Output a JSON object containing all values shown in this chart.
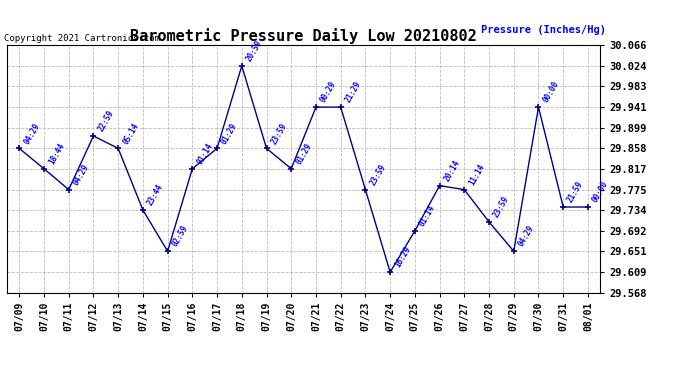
{
  "title": "Barometric Pressure Daily Low 20210802",
  "ylabel": "Pressure (Inches/Hg)",
  "copyright": "Copyright 2021 Cartronics.com",
  "x_labels": [
    "07/09",
    "07/10",
    "07/11",
    "07/12",
    "07/13",
    "07/14",
    "07/15",
    "07/16",
    "07/17",
    "07/18",
    "07/19",
    "07/20",
    "07/21",
    "07/22",
    "07/23",
    "07/24",
    "07/25",
    "07/26",
    "07/27",
    "07/28",
    "07/29",
    "07/30",
    "07/31",
    "08/01"
  ],
  "y_values": [
    29.858,
    29.817,
    29.775,
    29.883,
    29.858,
    29.734,
    29.651,
    29.817,
    29.858,
    30.024,
    29.858,
    29.817,
    29.941,
    29.941,
    29.775,
    29.609,
    29.692,
    29.783,
    29.775,
    29.71,
    29.651,
    29.941,
    29.74,
    29.74
  ],
  "point_labels": [
    "04:29",
    "18:44",
    "04:29",
    "22:59",
    "05:14",
    "23:44",
    "02:59",
    "01:14",
    "01:29",
    "20:59",
    "23:59",
    "01:29",
    "00:29",
    "21:29",
    "23:59",
    "16:29",
    "01:14",
    "20:14",
    "11:14",
    "23:59",
    "04:29",
    "00:00",
    "21:59",
    "00:00"
  ],
  "ylim_min": 29.568,
  "ylim_max": 30.066,
  "yticks": [
    29.568,
    29.609,
    29.651,
    29.692,
    29.734,
    29.775,
    29.817,
    29.858,
    29.899,
    29.941,
    29.983,
    30.024,
    30.066
  ],
  "line_color": "#00008B",
  "marker_color": "#00008B",
  "label_color": "#0000FF",
  "title_color": "#000000",
  "copyright_color": "#000000",
  "ylabel_color": "#0000FF",
  "background_color": "#FFFFFF",
  "grid_color": "#BBBBBB",
  "figwidth": 6.9,
  "figheight": 3.75,
  "dpi": 100
}
